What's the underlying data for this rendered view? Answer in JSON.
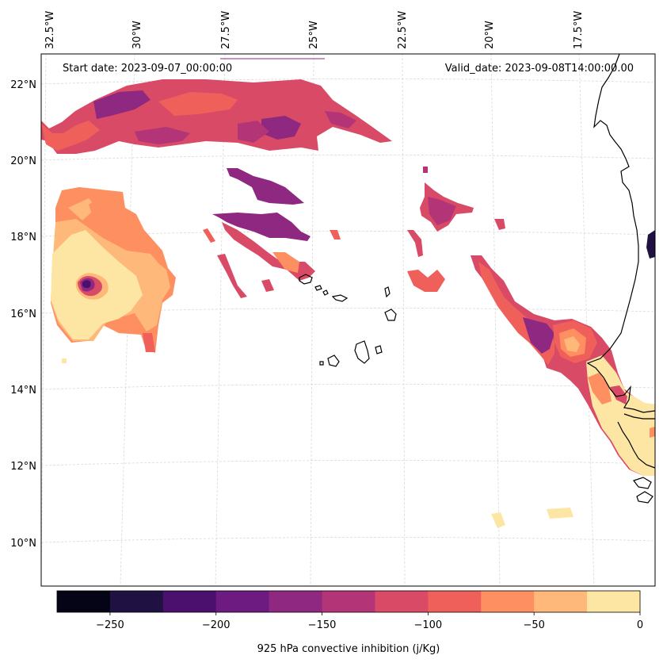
{
  "header": {
    "start_date": "Start date: 2023-09-07_00:00:00",
    "valid_date": "Valid_date: 2023-09-08T14:00:00.00"
  },
  "axes": {
    "lon_labels": [
      "32.5°W",
      "30°W",
      "27.5°W",
      "25°W",
      "22.5°W",
      "20°W",
      "17.5°W"
    ],
    "lat_labels": [
      "22°N",
      "20°N",
      "18°N",
      "16°N",
      "14°N",
      "12°N",
      "10°N"
    ]
  },
  "colorbar": {
    "title": "925 hPa convective inhibition (j/Kg)",
    "tick_labels": [
      "−250",
      "−200",
      "−150",
      "−100",
      "−50",
      "0"
    ],
    "levels": [
      -275,
      -250,
      -225,
      -200,
      -175,
      -150,
      -125,
      -100,
      -75,
      -50,
      -25,
      0
    ],
    "colors": [
      "#050417",
      "#1f1242",
      "#4b0f6e",
      "#6e1b81",
      "#8f2880",
      "#b33577",
      "#d94a66",
      "#f0605a",
      "#fd8f60",
      "#feb97a",
      "#fde6a4"
    ]
  },
  "colors": {
    "coastline": "#000000",
    "gridline": "#d9d9d9",
    "frame": "#000000"
  }
}
